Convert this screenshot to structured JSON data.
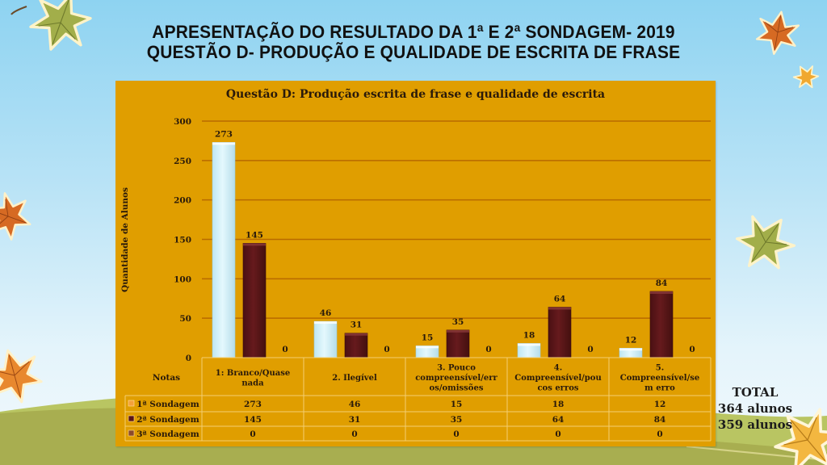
{
  "slide": {
    "title_line1": "APRESENTAÇÃO  DO RESULTADO DA 1ª E 2ª SONDAGEM- 2019",
    "title_line2": "QUESTÃO  D- PRODUÇÃO  E QUALIDADE  DE ESCRITA DE FRASE",
    "total_label": "TOTAL",
    "total_1": "364 alunos",
    "total_2": "359 alunos"
  },
  "colors": {
    "background": "#E09E00",
    "series_1": "#D4F3FB",
    "series_2": "#5A1518",
    "series_3": "#8B4A2B",
    "gridline": "#B86A00",
    "text": "#2a1a0a"
  },
  "chart_data": {
    "type": "bar",
    "title": "Questão D: Produção escrita de frase e qualidade de escrita",
    "xlabel": "Notas",
    "ylabel": "Quantidade de Alunos",
    "ylim": [
      0,
      300
    ],
    "yticks": [
      "0",
      "50",
      "100",
      "150",
      "200",
      "250",
      "300"
    ],
    "grid": true,
    "legend": "table-bottom",
    "categories": [
      [
        "1: Branco/Quase",
        "nada"
      ],
      [
        "2. Ilegível"
      ],
      [
        "3. Pouco",
        "compreensível/err",
        "os/omissões"
      ],
      [
        "4.",
        "Compreensível/pou",
        "cos erros"
      ],
      [
        "5.",
        "Compreensível/se",
        "m erro"
      ]
    ],
    "series": [
      {
        "name": "1ª Sondagem",
        "values": [
          273,
          46,
          15,
          18,
          12
        ]
      },
      {
        "name": "2ª Sondagem",
        "values": [
          145,
          31,
          35,
          64,
          84
        ]
      },
      {
        "name": "3ª Sondagem",
        "values": [
          0,
          0,
          0,
          0,
          0
        ]
      }
    ]
  }
}
